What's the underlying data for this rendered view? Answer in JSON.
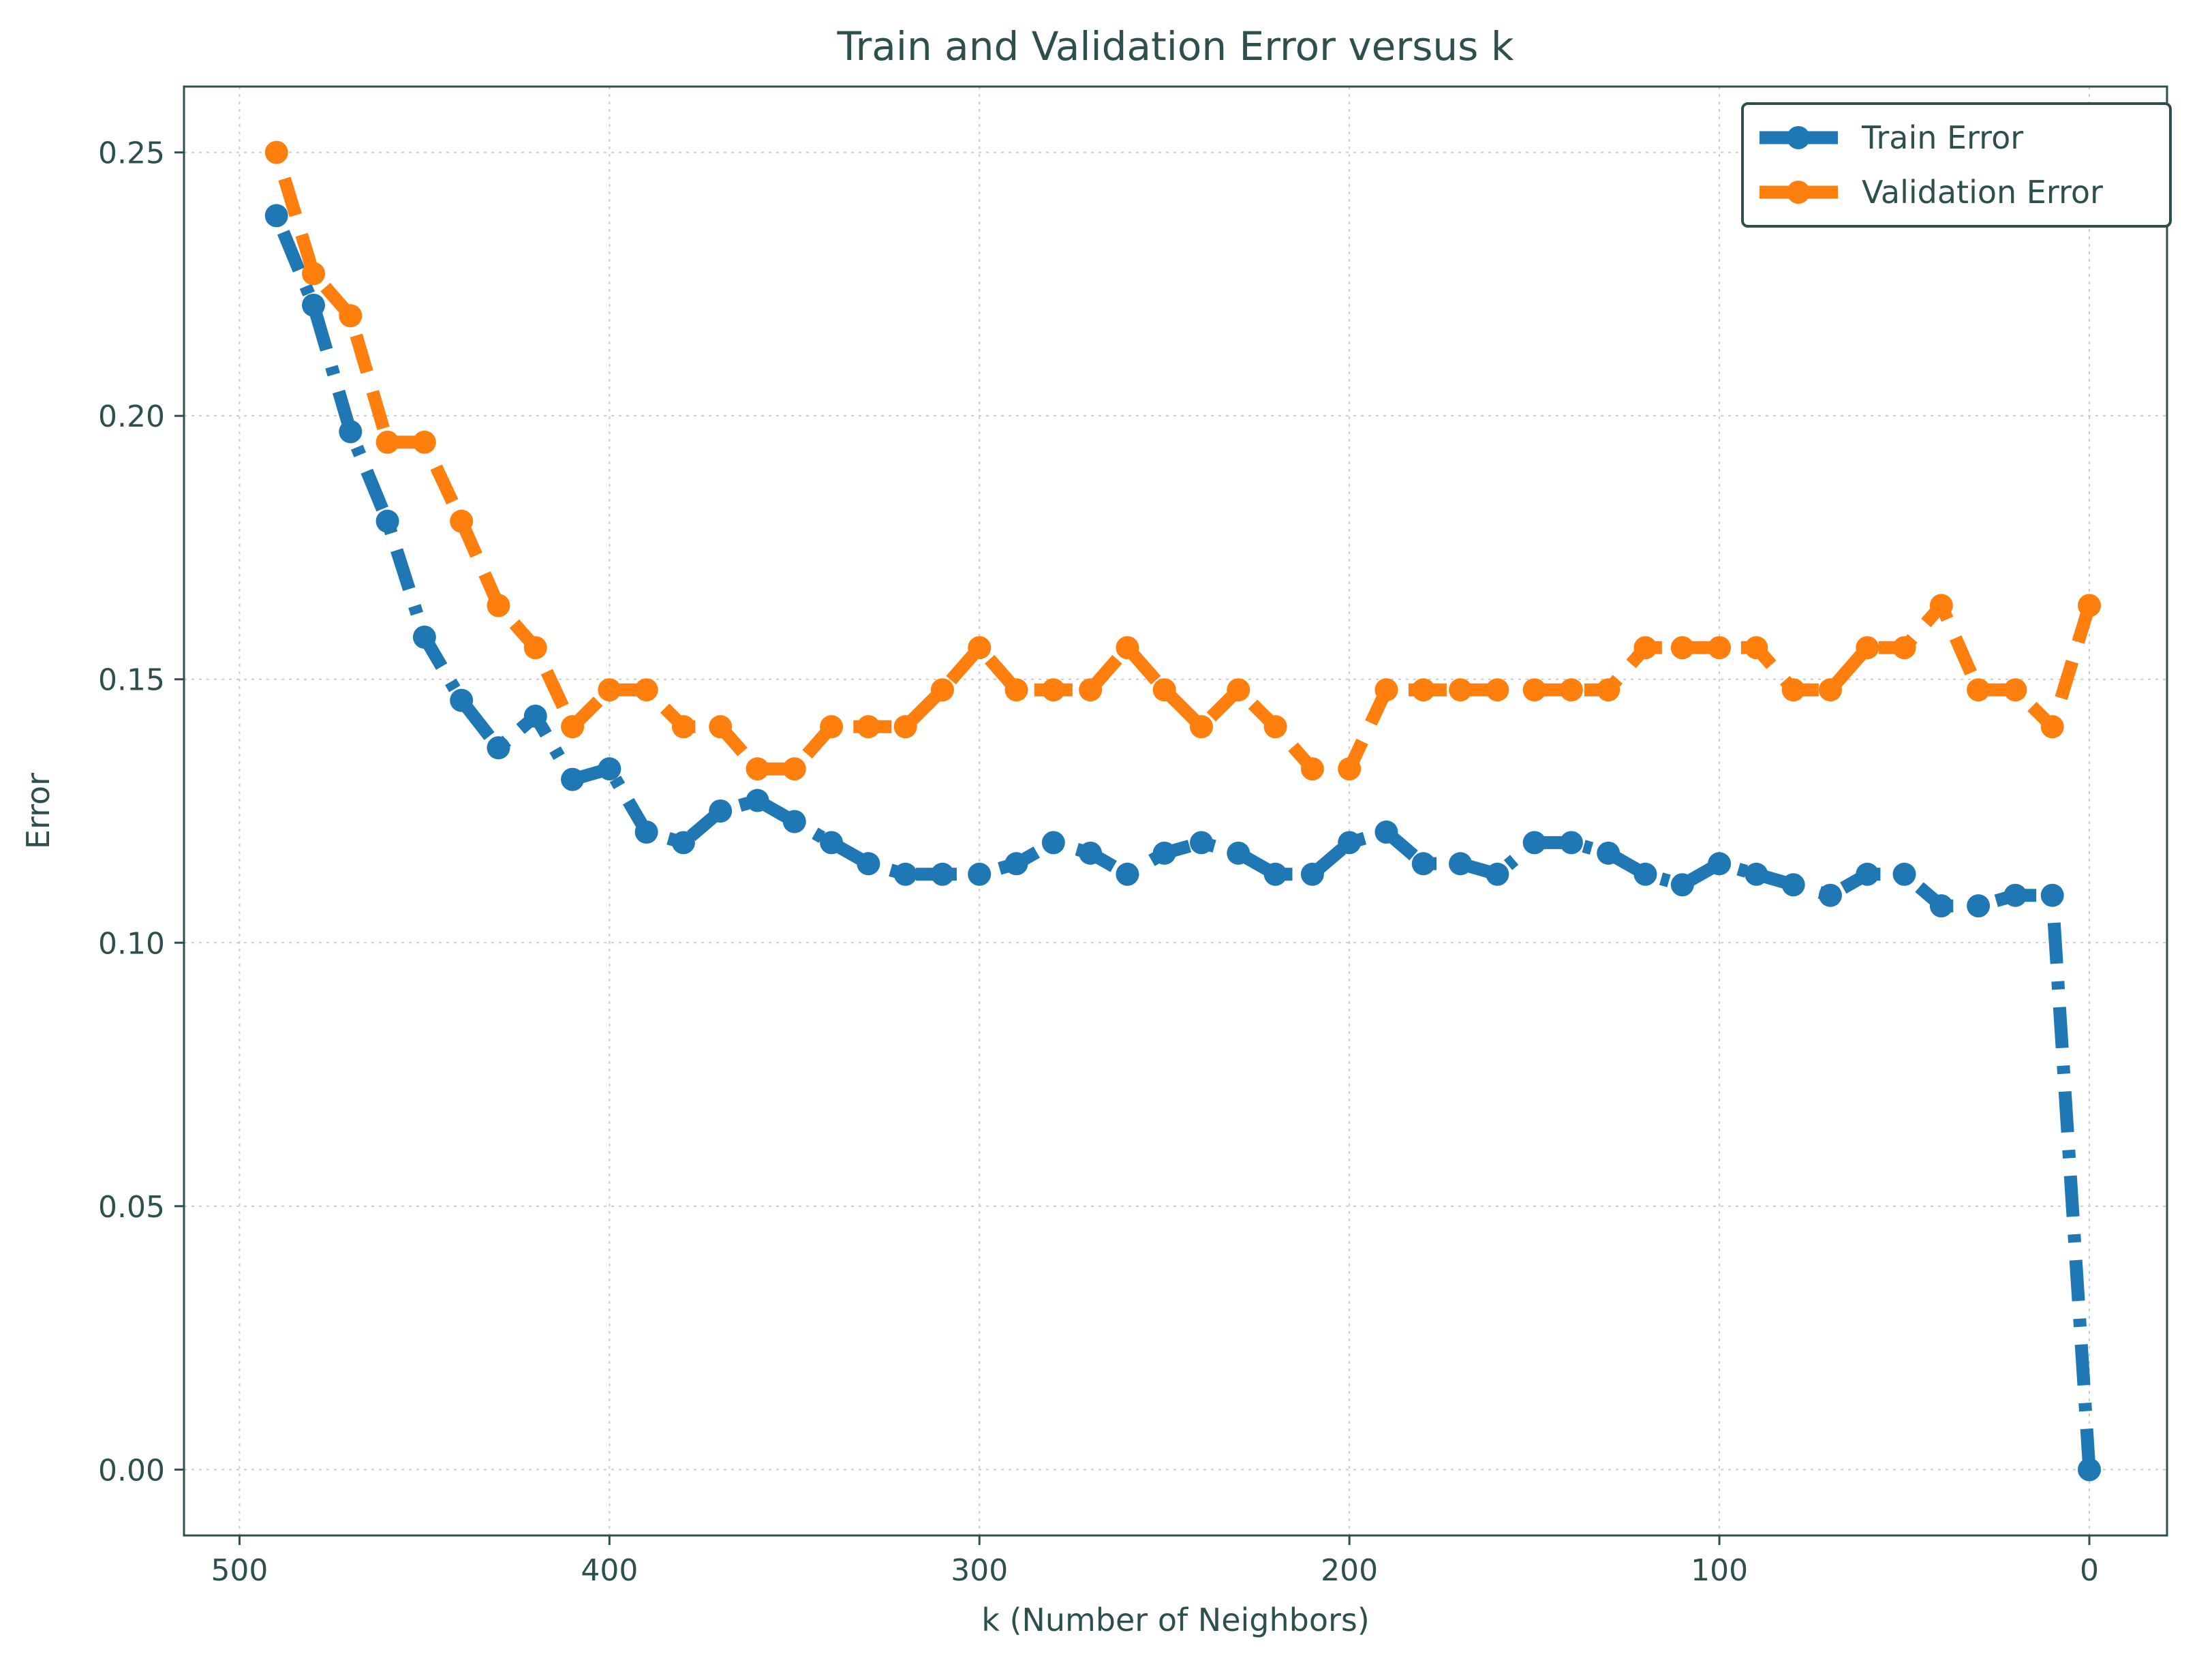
{
  "chart_data": {
    "type": "line",
    "title": "Train and Validation Error versus k",
    "xlabel": "k (Number of Neighbors)",
    "ylabel": "Error",
    "xlim": [
      515,
      -21
    ],
    "ylim": [
      -0.0125,
      0.2625
    ],
    "x_ticks": [
      500,
      400,
      300,
      200,
      100,
      0
    ],
    "y_ticks": [
      0.0,
      0.05,
      0.1,
      0.15,
      0.2,
      0.25
    ],
    "y_tick_labels": [
      "0.00",
      "0.05",
      "0.10",
      "0.15",
      "0.20",
      "0.25"
    ],
    "grid": true,
    "legend_position": "top-right",
    "x": [
      0,
      10,
      20,
      30,
      40,
      50,
      60,
      70,
      80,
      90,
      100,
      110,
      120,
      130,
      140,
      150,
      160,
      170,
      180,
      190,
      200,
      210,
      220,
      230,
      240,
      250,
      260,
      270,
      280,
      290,
      300,
      310,
      320,
      330,
      340,
      350,
      360,
      370,
      380,
      390,
      400,
      410,
      420,
      430,
      440,
      450,
      460,
      470,
      480,
      490
    ],
    "series": [
      {
        "name": "Train Error",
        "color": "#1f77b4",
        "line_style": "dashdot",
        "values": [
          0.0,
          0.109,
          0.109,
          0.107,
          0.107,
          0.113,
          0.113,
          0.109,
          0.111,
          0.113,
          0.115,
          0.111,
          0.113,
          0.117,
          0.119,
          0.119,
          0.113,
          0.115,
          0.115,
          0.121,
          0.119,
          0.113,
          0.113,
          0.117,
          0.119,
          0.117,
          0.113,
          0.117,
          0.119,
          0.115,
          0.113,
          0.113,
          0.113,
          0.115,
          0.119,
          0.123,
          0.127,
          0.125,
          0.119,
          0.121,
          0.133,
          0.131,
          0.143,
          0.137,
          0.146,
          0.158,
          0.18,
          0.197,
          0.221,
          0.238
        ]
      },
      {
        "name": "Validation Error",
        "color": "#ff7f0e",
        "line_style": "dashed",
        "values": [
          0.164,
          0.141,
          0.148,
          0.148,
          0.164,
          0.156,
          0.156,
          0.148,
          0.148,
          0.156,
          0.156,
          0.156,
          0.156,
          0.148,
          0.148,
          0.148,
          0.148,
          0.148,
          0.148,
          0.148,
          0.133,
          0.133,
          0.141,
          0.148,
          0.141,
          0.148,
          0.156,
          0.148,
          0.148,
          0.148,
          0.156,
          0.148,
          0.141,
          0.141,
          0.141,
          0.133,
          0.133,
          0.141,
          0.141,
          0.148,
          0.148,
          0.141,
          0.156,
          0.164,
          0.18,
          0.195,
          0.195,
          0.219,
          0.227,
          0.25
        ]
      }
    ]
  }
}
